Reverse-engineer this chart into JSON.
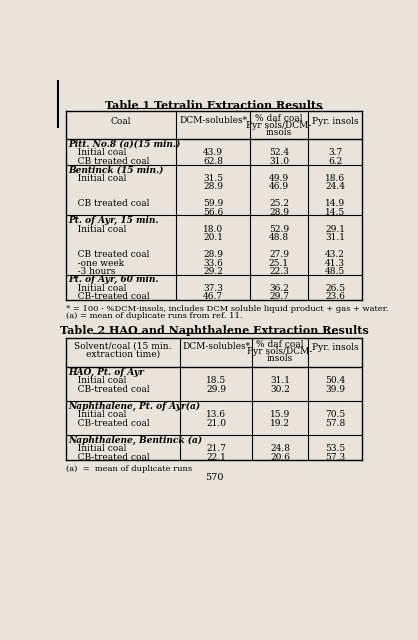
{
  "table1_title": "Table 1 Tetralin Extraction Results",
  "table1_rows": [
    {
      "label": "Pitt. No.8 (a)(15 min.)",
      "bold_italic": true,
      "values": [
        null,
        null,
        null
      ]
    },
    {
      "label": "   Initial coal",
      "bold_italic": false,
      "values": [
        "43.9",
        "52.4",
        "3.7"
      ]
    },
    {
      "label": "   CB treated coal",
      "bold_italic": false,
      "values": [
        "62.8",
        "31.0",
        "6.2"
      ]
    },
    {
      "label": "Bentinck (15 min.)",
      "bold_italic": true,
      "values": [
        null,
        null,
        null
      ]
    },
    {
      "label": "   Initial coal",
      "bold_italic": false,
      "values": [
        "31.5",
        "49.9",
        "18.6"
      ]
    },
    {
      "label": "",
      "bold_italic": false,
      "values": [
        "28.9",
        "46.9",
        "24.4"
      ]
    },
    {
      "label": "",
      "bold_italic": false,
      "values": [
        null,
        null,
        null
      ]
    },
    {
      "label": "   CB treated coal",
      "bold_italic": false,
      "values": [
        "59.9",
        "25.2",
        "14.9"
      ]
    },
    {
      "label": "",
      "bold_italic": false,
      "values": [
        "56.6",
        "28.9",
        "14.5"
      ]
    },
    {
      "label": "Pt. of Ayr, 15 min.",
      "bold_italic": true,
      "values": [
        null,
        null,
        null
      ]
    },
    {
      "label": "   Initial coal",
      "bold_italic": false,
      "values": [
        "18.0",
        "52.9",
        "29.1"
      ]
    },
    {
      "label": "",
      "bold_italic": false,
      "values": [
        "20.1",
        "48.8",
        "31.1"
      ]
    },
    {
      "label": "",
      "bold_italic": false,
      "values": [
        null,
        null,
        null
      ]
    },
    {
      "label": "   CB treated coal",
      "bold_italic": false,
      "values": [
        "28.9",
        "27.9",
        "43.2"
      ]
    },
    {
      "label": "   -one week",
      "bold_italic": false,
      "values": [
        "33.6",
        "25.1",
        "41.3"
      ]
    },
    {
      "label": "   -3 hours",
      "bold_italic": false,
      "values": [
        "29.2",
        "22.3",
        "48.5"
      ]
    },
    {
      "label": "Pt. of Ayr, 60 min.",
      "bold_italic": true,
      "values": [
        null,
        null,
        null
      ]
    },
    {
      "label": "   Initial coal",
      "bold_italic": false,
      "values": [
        "37.3",
        "36.2",
        "26.5"
      ]
    },
    {
      "label": "   CB-treated coal",
      "bold_italic": false,
      "values": [
        "46.7",
        "29.7",
        "23.6"
      ]
    }
  ],
  "table1_footnote1": "* = 100 - %DCM-insols, includes DCM soluble liquid product + gas + water.",
  "table1_footnote2": "(a) = mean of duplicate runs from ref. 11.",
  "table2_title": "Table 2 HAO and Naphthalene Extraction Results",
  "table2_rows": [
    {
      "label": "HAO, Pt. of Ayr",
      "bold_italic": true,
      "values": [
        null,
        null,
        null
      ]
    },
    {
      "label": "   Initial coal",
      "bold_italic": false,
      "values": [
        "18.5",
        "31.1",
        "50.4"
      ]
    },
    {
      "label": "   CB-treated coal",
      "bold_italic": false,
      "values": [
        "29.9",
        "30.2",
        "39.9"
      ]
    },
    {
      "label": "",
      "bold_italic": false,
      "values": [
        null,
        null,
        null
      ]
    },
    {
      "label": "Naphthalene, Pt. of Ayr(a)",
      "bold_italic": true,
      "values": [
        null,
        null,
        null
      ]
    },
    {
      "label": "   Initial coal",
      "bold_italic": false,
      "values": [
        "13.6",
        "15.9",
        "70.5"
      ]
    },
    {
      "label": "   CB-treated coal",
      "bold_italic": false,
      "values": [
        "21.0",
        "19.2",
        "57.8"
      ]
    },
    {
      "label": "",
      "bold_italic": false,
      "values": [
        null,
        null,
        null
      ]
    },
    {
      "label": "Naphthalene, Bentinck (a)",
      "bold_italic": true,
      "values": [
        null,
        null,
        null
      ]
    },
    {
      "label": "   Initial coal",
      "bold_italic": false,
      "values": [
        "21.7",
        "24.8",
        "53.5"
      ]
    },
    {
      "label": "   CB-treated coal",
      "bold_italic": false,
      "values": [
        "22.1",
        "20.6",
        "57.3"
      ]
    }
  ],
  "table2_footnote": "(a)  =  mean of duplicate runs",
  "page_number": "570",
  "bg_color": "#e8e4dc",
  "line_color": "#000000",
  "text_color": "#000000"
}
